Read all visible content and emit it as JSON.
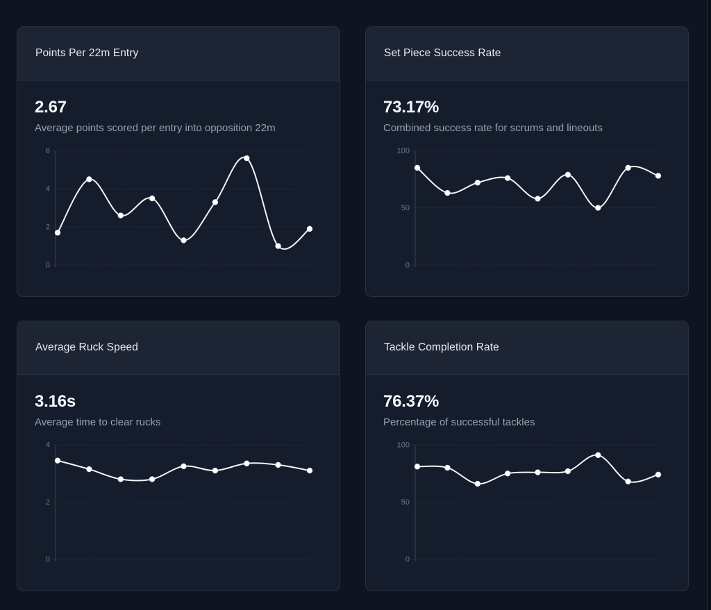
{
  "theme": {
    "page_bg": "#0e1421",
    "card_bg": "#151c2b",
    "card_header_bg": "#1d2433",
    "card_border": "#2b3342",
    "title_color": "#e8ebf1",
    "value_color": "#f5f7fa",
    "desc_color": "#97a1b0",
    "tick_color": "#6f7989",
    "grid_color": "#28303f",
    "axis_color": "#394455",
    "line_color": "#f3f4f6",
    "dot_color": "#ffffff"
  },
  "cards": [
    {
      "title": "Points Per 22m Entry",
      "value": "2.67",
      "description": "Average points scored per entry into opposition 22m"
    },
    {
      "title": "Set Piece Success Rate",
      "value": "73.17%",
      "description": "Combined success rate for scrums and lineouts"
    },
    {
      "title": "Average Ruck Speed",
      "value": "3.16s",
      "description": "Average time to clear rucks"
    },
    {
      "title": "Tackle Completion Rate",
      "value": "76.37%",
      "description": "Percentage of successful tackles"
    }
  ],
  "chart_data": [
    {
      "type": "line",
      "title": "Points Per 22m Entry",
      "x": [
        1,
        2,
        3,
        4,
        5,
        6,
        7,
        8,
        9
      ],
      "values": [
        1.7,
        4.5,
        2.6,
        3.5,
        1.3,
        3.3,
        5.6,
        1.0,
        1.9
      ],
      "xlabel": "",
      "ylabel": "",
      "ylim": [
        0,
        6
      ],
      "yticks": [
        0,
        2,
        4,
        6
      ],
      "xticks_visible": false,
      "grid": true,
      "legend": "none"
    },
    {
      "type": "line",
      "title": "Set Piece Success Rate",
      "x": [
        1,
        2,
        3,
        4,
        5,
        6,
        7,
        8,
        9
      ],
      "values": [
        85,
        63,
        72,
        76,
        58,
        79,
        50,
        85,
        78
      ],
      "xlabel": "",
      "ylabel": "",
      "ylim": [
        0,
        100
      ],
      "yticks": [
        0,
        50,
        100
      ],
      "xticks_visible": false,
      "grid": true,
      "legend": "none"
    },
    {
      "type": "line",
      "title": "Average Ruck Speed",
      "x": [
        1,
        2,
        3,
        4,
        5,
        6,
        7,
        8,
        9
      ],
      "values": [
        3.45,
        3.15,
        2.8,
        2.8,
        3.25,
        3.1,
        3.35,
        3.3,
        3.1
      ],
      "xlabel": "",
      "ylabel": "",
      "ylim": [
        0,
        4
      ],
      "yticks": [
        0,
        2,
        4
      ],
      "xticks_visible": false,
      "grid": true,
      "legend": "none"
    },
    {
      "type": "line",
      "title": "Tackle Completion Rate",
      "x": [
        1,
        2,
        3,
        4,
        5,
        6,
        7,
        8,
        9
      ],
      "values": [
        81,
        80,
        66,
        75,
        76,
        77,
        91,
        68,
        74
      ],
      "xlabel": "",
      "ylabel": "",
      "ylim": [
        0,
        100
      ],
      "yticks": [
        0,
        50,
        100
      ],
      "xticks_visible": false,
      "grid": true,
      "legend": "none"
    }
  ]
}
